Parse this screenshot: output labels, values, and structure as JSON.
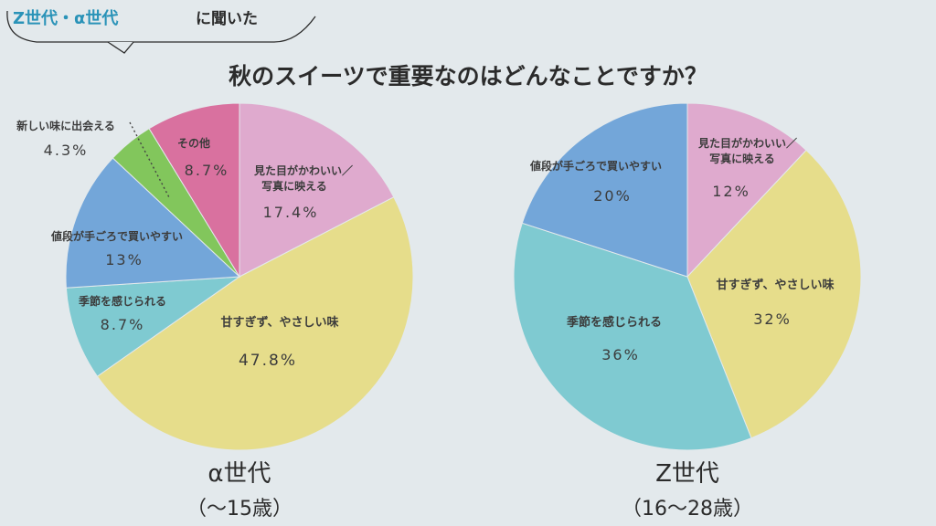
{
  "header": {
    "tag_accent": "Z世代・α世代",
    "tag_plain": "に聞いた",
    "title": "秋のスイーツで重要なのはどんなことですか？"
  },
  "colors": {
    "pink": "#dfaace",
    "yellow": "#e6dd8b",
    "teal": "#7fcad1",
    "blue": "#73a6d9",
    "green": "#82c65c",
    "magenta": "#d9719f",
    "accent": "#2a93b8"
  },
  "chart_data": [
    {
      "type": "pie",
      "caption_line1": "α世代",
      "caption_line2": "（〜15歳）",
      "start": "12 o'clock, clockwise",
      "slices": [
        {
          "label": "見た目がかわいい／写真に映える",
          "label_lines": [
            "見た目がかわいい／",
            "写真に映える"
          ],
          "value": 17.4,
          "value_label": "17.4%",
          "color": "#dfaace"
        },
        {
          "label": "甘すぎず、やさしい味",
          "label_lines": [
            "甘すぎず、やさしい味"
          ],
          "value": 47.8,
          "value_label": "47.8%",
          "color": "#e6dd8b"
        },
        {
          "label": "季節を感じられる",
          "label_lines": [
            "季節を感じられる"
          ],
          "value": 8.7,
          "value_label": "8.7%",
          "color": "#7fcad1"
        },
        {
          "label": "値段が手ごろで買いやすい",
          "label_lines": [
            "値段が手ごろで買いやすい"
          ],
          "value": 13,
          "value_label": "13%",
          "color": "#73a6d9"
        },
        {
          "label": "新しい味に出会える",
          "label_lines": [
            "新しい味に出会える"
          ],
          "value": 4.3,
          "value_label": "4.3%",
          "color": "#82c65c"
        },
        {
          "label": "その他",
          "label_lines": [
            "その他"
          ],
          "value": 8.7,
          "value_label": "8.7%",
          "color": "#d9719f"
        }
      ]
    },
    {
      "type": "pie",
      "caption_line1": "Z世代",
      "caption_line2": "（16〜28歳）",
      "start": "12 o'clock, clockwise",
      "slices": [
        {
          "label": "見た目がかわいい／写真に映える",
          "label_lines": [
            "見た目がかわいい／",
            "写真に映える"
          ],
          "value": 12,
          "value_label": "12%",
          "color": "#dfaace"
        },
        {
          "label": "甘すぎず、やさしい味",
          "label_lines": [
            "甘すぎず、やさしい味"
          ],
          "value": 32,
          "value_label": "32%",
          "color": "#e6dd8b"
        },
        {
          "label": "季節を感じられる",
          "label_lines": [
            "季節を感じられる"
          ],
          "value": 36,
          "value_label": "36%",
          "color": "#7fcad1"
        },
        {
          "label": "値段が手ごろで買いやすい",
          "label_lines": [
            "値段が手ごろで買いやすい"
          ],
          "value": 20,
          "value_label": "20%",
          "color": "#73a6d9"
        }
      ]
    }
  ]
}
